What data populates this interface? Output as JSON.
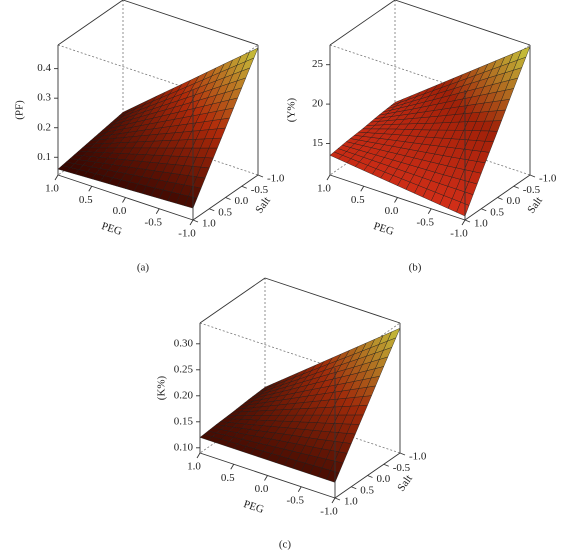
{
  "chart_data": [
    {
      "type": "surface",
      "caption": "(a)",
      "xlabel": "PEG",
      "ylabel": "Salt",
      "zlabel": "(PF)",
      "x": [
        1.0,
        0.5,
        0.0,
        -0.5,
        -1.0
      ],
      "y": [
        1.0,
        0.5,
        0.0,
        -0.5,
        -1.0
      ],
      "z": [
        [
          0.06,
          0.065,
          0.07,
          0.075,
          0.08
        ],
        [
          0.07,
          0.097,
          0.124,
          0.151,
          0.178
        ],
        [
          0.08,
          0.129,
          0.178,
          0.226,
          0.275
        ],
        [
          0.09,
          0.161,
          0.231,
          0.302,
          0.373
        ],
        [
          0.1,
          0.193,
          0.285,
          0.378,
          0.47
        ]
      ],
      "xlim": [
        1.0,
        -1.0
      ],
      "ylim": [
        1.0,
        -1.0
      ],
      "zlim": [
        0.04,
        0.48
      ],
      "xticks": [
        {
          "value": 1,
          "label": "1.0"
        },
        0.5,
        {
          "value": 0,
          "label": "0.0"
        },
        -0.5,
        {
          "value": -1,
          "label": "-1.0"
        }
      ],
      "yticks": [
        {
          "value": 1,
          "label": "1.0"
        },
        0.5,
        {
          "value": 0,
          "label": "0.0"
        },
        -0.5,
        {
          "value": -1,
          "label": "-1.0"
        }
      ],
      "zticks": [
        0.1,
        0.2,
        0.3,
        0.4
      ],
      "colormap": [
        "#2a0300",
        "#b02a0a",
        "#c8d040"
      ]
    },
    {
      "type": "surface",
      "caption": "(b)",
      "xlabel": "PEG",
      "ylabel": "Salt",
      "zlabel": "(Y%)",
      "x": [
        1.0,
        0.5,
        0.0,
        -0.5,
        -1.0
      ],
      "y": [
        1.0,
        0.5,
        0.0,
        -0.5,
        -1.0
      ],
      "z": [
        [
          13.5,
          13.0,
          12.5,
          12.0,
          11.5
        ],
        [
          13.8,
          14.2,
          14.6,
          15.0,
          15.5
        ],
        [
          14.0,
          15.4,
          16.7,
          18.1,
          19.4
        ],
        [
          14.3,
          16.5,
          18.8,
          21.1,
          23.4
        ],
        [
          14.5,
          17.7,
          20.9,
          24.1,
          27.3
        ]
      ],
      "xlim": [
        1.0,
        -1.0
      ],
      "ylim": [
        1.0,
        -1.0
      ],
      "zlim": [
        11,
        27.5
      ],
      "xticks": [
        {
          "value": 1,
          "label": "1.0"
        },
        0.5,
        {
          "value": 0,
          "label": "0.0"
        },
        -0.5,
        {
          "value": -1,
          "label": "-1.0"
        }
      ],
      "yticks": [
        {
          "value": 1,
          "label": "1.0"
        },
        0.5,
        {
          "value": 0,
          "label": "0.0"
        },
        -0.5,
        {
          "value": -1,
          "label": "-1.0"
        }
      ],
      "zticks": [
        15,
        20,
        25
      ],
      "colormap": [
        "#d8301a",
        "#a02008",
        "#c8d040"
      ]
    },
    {
      "type": "surface",
      "caption": "(c)",
      "xlabel": "PEG",
      "ylabel": "Salt",
      "zlabel": "(K%)",
      "x": [
        1.0,
        0.5,
        0.0,
        -0.5,
        -1.0
      ],
      "y": [
        1.0,
        0.5,
        0.0,
        -0.5,
        -1.0
      ],
      "z": [
        [
          0.12,
          0.12,
          0.12,
          0.12,
          0.12
        ],
        [
          0.123,
          0.135,
          0.148,
          0.16,
          0.173
        ],
        [
          0.125,
          0.15,
          0.175,
          0.2,
          0.225
        ],
        [
          0.128,
          0.165,
          0.203,
          0.24,
          0.278
        ],
        [
          0.13,
          0.18,
          0.23,
          0.28,
          0.33
        ]
      ],
      "xlim": [
        1.0,
        -1.0
      ],
      "ylim": [
        1.0,
        -1.0
      ],
      "zlim": [
        0.09,
        0.34
      ],
      "xticks": [
        {
          "value": 1,
          "label": "1.0"
        },
        0.5,
        {
          "value": 0,
          "label": "0.0"
        },
        -0.5,
        {
          "value": -1,
          "label": "-1.0"
        }
      ],
      "yticks": [
        {
          "value": 1,
          "label": "1.0"
        },
        0.5,
        {
          "value": 0,
          "label": "0.0"
        },
        -0.5,
        {
          "value": -1,
          "label": "-1.0"
        }
      ],
      "zticks": [
        {
          "value": 0.1,
          "label": "0.10"
        },
        0.15,
        {
          "value": 0.2,
          "label": "0.20"
        },
        0.25,
        {
          "value": 0.3,
          "label": "0.30"
        }
      ],
      "colormap": [
        "#2a0300",
        "#a02a0a",
        "#c8d040"
      ]
    }
  ]
}
